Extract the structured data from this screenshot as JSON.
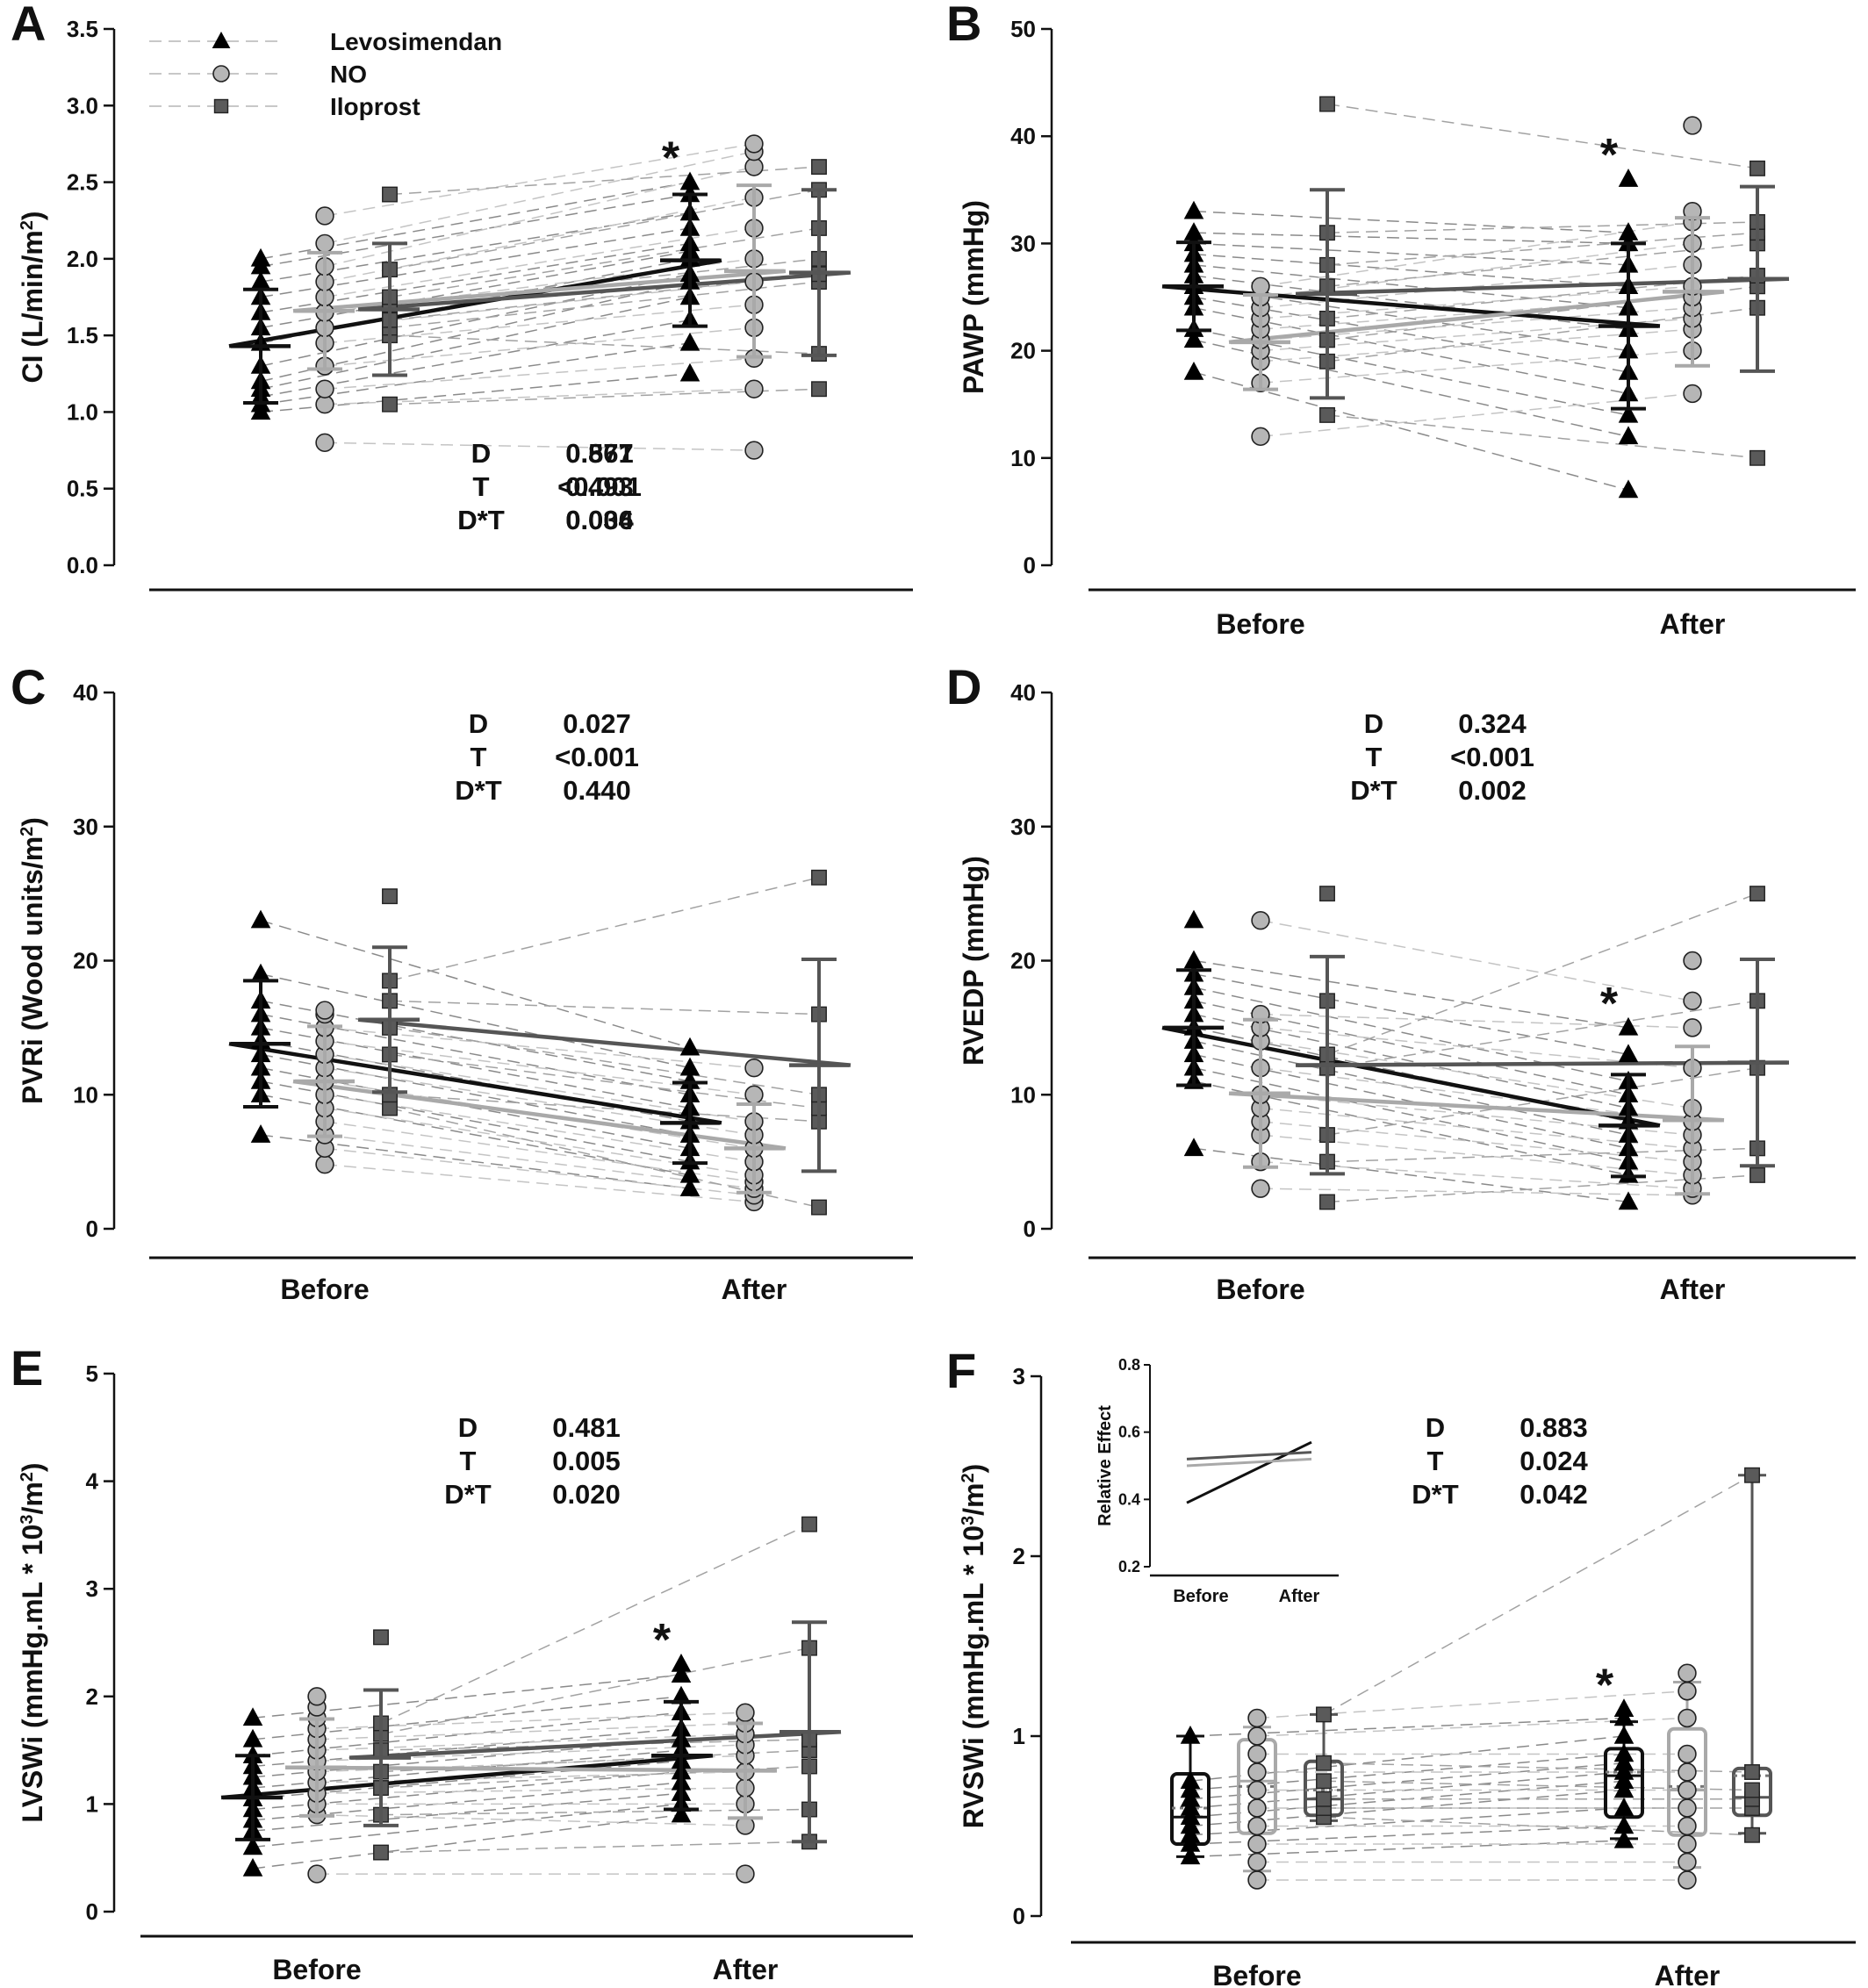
{
  "legend": [
    {
      "name": "Levosimendan",
      "marker": "triangle",
      "color": "#111111"
    },
    {
      "name": "NO",
      "marker": "circle",
      "color": "#b0b0b0"
    },
    {
      "name": "Iloprost",
      "marker": "square",
      "color": "#5f5f5f"
    }
  ],
  "chart_data": [
    {
      "panel": "A",
      "type": "scatter",
      "ylabel_parts": [
        "CI (L/min/m",
        "2",
        ")"
      ],
      "ylim": [
        0,
        3.5
      ],
      "yticks": [
        0.0,
        0.5,
        1.0,
        1.5,
        2.0,
        2.5,
        3.0,
        3.5
      ],
      "ytick_labels": [
        "0.0",
        "0.5",
        "1.0",
        "1.5",
        "2.0",
        "2.5",
        "3.0",
        "3.5"
      ],
      "categories": [
        "",
        ""
      ],
      "series": [
        {
          "name": "Levosimendan",
          "before": [
            1.0,
            1.05,
            1.1,
            1.15,
            1.2,
            1.3,
            1.45,
            1.55,
            1.65,
            1.75,
            1.85,
            1.95,
            2.0
          ],
          "after": [
            1.25,
            1.45,
            1.6,
            1.75,
            1.85,
            1.9,
            2.0,
            2.05,
            2.1,
            2.2,
            2.3,
            2.42,
            2.5
          ],
          "mean": [
            1.43,
            1.99
          ],
          "sd": [
            0.37,
            0.43
          ],
          "star_after": true
        },
        {
          "name": "NO",
          "before": [
            0.8,
            1.05,
            1.15,
            1.3,
            1.45,
            1.55,
            1.65,
            1.75,
            1.85,
            1.95,
            2.1,
            2.28
          ],
          "after": [
            0.75,
            1.15,
            1.35,
            1.55,
            1.7,
            1.85,
            2.0,
            2.2,
            2.4,
            2.6,
            2.7,
            2.75
          ],
          "mean": [
            1.66,
            1.92
          ],
          "sd": [
            0.38,
            0.56
          ]
        },
        {
          "name": "Iloprost",
          "before": [
            1.05,
            1.5,
            1.55,
            1.6,
            1.7,
            1.75,
            1.93,
            2.42
          ],
          "after": [
            1.15,
            1.38,
            1.85,
            1.9,
            2.0,
            2.2,
            2.45,
            2.6
          ],
          "mean": [
            1.67,
            1.91
          ],
          "sd": [
            0.43,
            0.54
          ]
        }
      ],
      "stats": [
        {
          "label": "D",
          "value": "0.877"
        },
        {
          "label": "T",
          "value": "<0.001"
        },
        {
          "label": "D*T",
          "value": "0.036"
        }
      ],
      "show_categories": false
    },
    {
      "panel": "B",
      "type": "scatter",
      "ylabel_parts": [
        "PAWP (mmHg)"
      ],
      "ylim": [
        0,
        50
      ],
      "yticks": [
        0,
        10,
        20,
        30,
        40,
        50
      ],
      "ytick_labels": [
        "0",
        "10",
        "20",
        "30",
        "40",
        "50"
      ],
      "categories": [
        "Before",
        "After"
      ],
      "series": [
        {
          "name": "Levosimendan",
          "before": [
            18,
            21,
            22,
            24,
            25,
            26,
            27,
            28,
            29,
            30,
            31,
            33
          ],
          "after": [
            7,
            12,
            14,
            16,
            18,
            20,
            22,
            24,
            26,
            28,
            30,
            31,
            36
          ],
          "mean": [
            26,
            22.3
          ],
          "sd": [
            4.1,
            7.7
          ],
          "star_after": true
        },
        {
          "name": "NO",
          "before": [
            12,
            17,
            19,
            20,
            21,
            22,
            23,
            24,
            25,
            26
          ],
          "after": [
            16,
            20,
            22,
            23,
            24,
            25,
            26,
            28,
            30,
            32,
            33,
            41
          ],
          "mean": [
            20.8,
            25.5
          ],
          "sd": [
            4.4,
            6.9
          ]
        },
        {
          "name": "Iloprost",
          "before": [
            14,
            19,
            21,
            23,
            26,
            28,
            31,
            43
          ],
          "after": [
            10,
            24,
            26,
            27,
            30,
            31,
            32,
            37
          ],
          "mean": [
            25.3,
            26.7
          ],
          "sd": [
            9.7,
            8.6
          ]
        }
      ],
      "stats": [
        {
          "label": "D",
          "value": "0.561"
        },
        {
          "label": "T",
          "value": "0.493"
        },
        {
          "label": "D*T",
          "value": "0.004"
        }
      ],
      "show_categories": true
    },
    {
      "panel": "C",
      "type": "scatter",
      "ylabel_parts": [
        "PVRi (Wood units/m",
        "2",
        ")"
      ],
      "ylim": [
        0,
        40
      ],
      "yticks": [
        0,
        10,
        20,
        30,
        40
      ],
      "ytick_labels": [
        "0",
        "10",
        "20",
        "30",
        "40"
      ],
      "categories": [
        "Before",
        "After"
      ],
      "series": [
        {
          "name": "Levosimendan",
          "before": [
            7,
            10,
            11,
            12,
            13,
            14,
            15,
            16,
            17,
            19,
            23
          ],
          "after": [
            3,
            4,
            5,
            6,
            7,
            8,
            9,
            10,
            11,
            12,
            13.5
          ],
          "mean": [
            13.8,
            7.9
          ],
          "sd": [
            4.7,
            3.0
          ]
        },
        {
          "name": "NO",
          "before": [
            4.8,
            6,
            7,
            8,
            9,
            10,
            11,
            12,
            13,
            14,
            15,
            16,
            16.3
          ],
          "after": [
            2,
            2.5,
            3,
            3.5,
            4,
            5,
            6,
            7,
            8,
            10,
            12
          ],
          "mean": [
            11.0,
            6.0
          ],
          "sd": [
            4.1,
            3.3
          ]
        },
        {
          "name": "Iloprost",
          "before": [
            9,
            10,
            13,
            15,
            17,
            18.5,
            24.8
          ],
          "after": [
            1.6,
            8,
            9,
            10,
            16,
            26.2
          ],
          "mean": [
            15.6,
            12.2
          ],
          "sd": [
            5.4,
            7.9
          ]
        }
      ],
      "stats": [
        {
          "label": "D",
          "value": "0.027"
        },
        {
          "label": "T",
          "value": "<0.001"
        },
        {
          "label": "D*T",
          "value": "0.440"
        }
      ],
      "show_categories": true
    },
    {
      "panel": "D",
      "type": "scatter",
      "ylabel_parts": [
        "RVEDP (mmHg)"
      ],
      "ylim": [
        0,
        40
      ],
      "yticks": [
        0,
        10,
        20,
        30,
        40
      ],
      "ytick_labels": [
        "0",
        "10",
        "20",
        "30",
        "40"
      ],
      "categories": [
        "Before",
        "After"
      ],
      "series": [
        {
          "name": "Levosimendan",
          "before": [
            6,
            11,
            12,
            13,
            14,
            15,
            16,
            17,
            18,
            19,
            20,
            23
          ],
          "after": [
            2,
            4,
            5,
            6,
            7,
            8,
            9,
            10,
            11,
            13,
            15
          ],
          "mean": [
            15.0,
            7.7
          ],
          "sd": [
            4.3,
            3.8
          ],
          "star_after": true
        },
        {
          "name": "NO",
          "before": [
            3,
            5,
            7,
            8,
            9,
            10,
            12,
            14,
            15,
            16,
            23
          ],
          "after": [
            2.5,
            3,
            4,
            5,
            6,
            7,
            8,
            9,
            12,
            15,
            17,
            20
          ],
          "mean": [
            10.1,
            8.1
          ],
          "sd": [
            5.5,
            5.5
          ]
        },
        {
          "name": "Iloprost",
          "before": [
            2,
            5,
            7,
            12,
            13,
            17,
            25
          ],
          "after": [
            4,
            6,
            12,
            17,
            25
          ],
          "mean": [
            12.2,
            12.4
          ],
          "sd": [
            8.1,
            7.7
          ]
        }
      ],
      "stats": [
        {
          "label": "D",
          "value": "0.324"
        },
        {
          "label": "T",
          "value": "<0.001"
        },
        {
          "label": "D*T",
          "value": "0.002"
        }
      ],
      "show_categories": true
    },
    {
      "panel": "E",
      "type": "scatter",
      "ylabel_parts": [
        "LVSWi (mmHg.mL * 10",
        "3",
        "/m",
        "2",
        ")"
      ],
      "ylim": [
        0,
        5
      ],
      "yticks": [
        0,
        1,
        2,
        3,
        4,
        5
      ],
      "ytick_labels": [
        "0",
        "1",
        "2",
        "3",
        "4",
        "5"
      ],
      "categories": [
        "Before",
        "After"
      ],
      "series": [
        {
          "name": "Levosimendan",
          "before": [
            0.4,
            0.6,
            0.75,
            0.85,
            0.95,
            1.05,
            1.15,
            1.25,
            1.35,
            1.45,
            1.6,
            1.8
          ],
          "after": [
            0.9,
            1.0,
            1.1,
            1.2,
            1.3,
            1.4,
            1.5,
            1.6,
            1.7,
            1.85,
            2.0,
            2.2,
            2.3
          ],
          "mean": [
            1.06,
            1.45
          ],
          "sd": [
            0.39,
            0.5
          ],
          "star_after": true
        },
        {
          "name": "NO",
          "before": [
            0.35,
            0.9,
            1.0,
            1.1,
            1.2,
            1.3,
            1.4,
            1.5,
            1.6,
            1.7,
            1.8,
            1.9,
            2.0
          ],
          "after": [
            0.35,
            0.8,
            1.0,
            1.15,
            1.3,
            1.45,
            1.55,
            1.65,
            1.75,
            1.85
          ],
          "mean": [
            1.34,
            1.31
          ],
          "sd": [
            0.45,
            0.44
          ]
        },
        {
          "name": "Iloprost",
          "before": [
            0.55,
            0.9,
            1.15,
            1.3,
            1.5,
            1.65,
            1.75,
            2.55
          ],
          "after": [
            0.65,
            0.95,
            1.35,
            1.5,
            1.6,
            2.45,
            3.6
          ],
          "mean": [
            1.43,
            1.67
          ],
          "sd": [
            0.63,
            1.02
          ]
        }
      ],
      "stats": [
        {
          "label": "D",
          "value": "0.481"
        },
        {
          "label": "T",
          "value": "0.005"
        },
        {
          "label": "D*T",
          "value": "0.020"
        }
      ],
      "show_categories": true
    },
    {
      "panel": "F",
      "type": "box",
      "ylabel_parts": [
        "RVSWi (mmHg.mL * 10",
        "3",
        "/m",
        "2",
        ")"
      ],
      "ylim": [
        0,
        3
      ],
      "yticks": [
        0,
        1,
        2,
        3
      ],
      "ytick_labels": [
        "0",
        "1",
        "2",
        "3"
      ],
      "categories": [
        "Before",
        "After"
      ],
      "series": [
        {
          "name": "Levosimendan",
          "before": [
            0.33,
            0.4,
            0.45,
            0.5,
            0.55,
            0.6,
            0.65,
            0.7,
            0.75,
            1.0
          ],
          "after": [
            0.42,
            0.5,
            0.6,
            0.7,
            0.75,
            0.8,
            0.85,
            0.9,
            1.0,
            1.1,
            1.15
          ],
          "box": [
            [
              0.33,
              0.4,
              0.55,
              0.79,
              1.0
            ],
            [
              0.43,
              0.55,
              0.78,
              0.93,
              1.08
            ]
          ],
          "box_mean": [
            0.6,
            0.8
          ],
          "star_after": true
        },
        {
          "name": "NO",
          "before": [
            0.2,
            0.3,
            0.4,
            0.5,
            0.6,
            0.7,
            0.8,
            0.9,
            1.0,
            1.1
          ],
          "after": [
            0.2,
            0.3,
            0.4,
            0.5,
            0.6,
            0.7,
            0.8,
            0.9,
            1.1,
            1.25,
            1.35
          ],
          "box": [
            [
              0.25,
              0.46,
              0.75,
              0.98,
              1.05
            ],
            [
              0.27,
              0.45,
              0.7,
              1.04,
              1.3
            ]
          ],
          "box_mean": [
            0.72,
            0.72
          ]
        },
        {
          "name": "Iloprost",
          "before": [
            0.55,
            0.6,
            0.65,
            0.75,
            0.85,
            1.12
          ],
          "after": [
            0.45,
            0.6,
            0.65,
            0.7,
            0.8,
            2.45
          ],
          "box": [
            [
              0.53,
              0.56,
              0.65,
              0.86,
              1.12
            ],
            [
              0.46,
              0.56,
              0.66,
              0.82,
              2.45
            ]
          ],
          "box_mean": [
            0.7,
            0.78
          ]
        }
      ],
      "stats": [
        {
          "label": "D",
          "value": "0.883"
        },
        {
          "label": "T",
          "value": "0.024"
        },
        {
          "label": "D*T",
          "value": "0.042"
        }
      ],
      "show_categories": true,
      "inset": {
        "ylabel": "Relative Effect",
        "ylim": [
          0.2,
          0.8
        ],
        "yticks": [
          0.2,
          0.4,
          0.6,
          0.8
        ],
        "ytick_labels": [
          "0.2",
          "0.4",
          "0.6",
          "0.8"
        ],
        "categories": [
          "Before",
          "After"
        ],
        "series": [
          {
            "name": "Levosimendan",
            "values": [
              0.39,
              0.57
            ]
          },
          {
            "name": "NO",
            "values": [
              0.5,
              0.52
            ]
          },
          {
            "name": "Iloprost",
            "values": [
              0.52,
              0.54
            ]
          }
        ]
      }
    }
  ]
}
